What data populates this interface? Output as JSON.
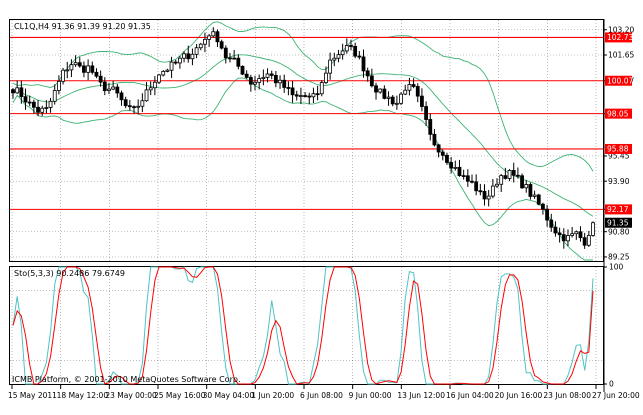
{
  "window": {
    "symbol_header": "CL1Q,H4  91.36 91.39 91.20 91.35",
    "oscillator_header": "Sto(5,3,3) 90.2486 79.6749",
    "footer": "ICMB Platform, © 2001-2010 MetaQuotes Software Corp."
  },
  "colors": {
    "background": "#ffffff",
    "candle": "#000000",
    "bollinger": "#3cb371",
    "level_line": "#ff0000",
    "level_tag": "#ff0000",
    "current_tag": "#000000",
    "stoch_main": "#4fc3c3",
    "stoch_signal": "#ff0000",
    "grid": "#000000"
  },
  "chart_data": {
    "type": "candlestick",
    "title": "CL1Q,H4",
    "ylim": [
      89.0,
      103.8
    ],
    "y_ticks": [
      103.2,
      101.65,
      100.07,
      98.05,
      95.45,
      93.9,
      92.17,
      90.8,
      89.25
    ],
    "x_ticks": [
      "15 May 2011",
      "18 May 12:00",
      "23 May 00:00",
      "25 May 16:00",
      "30 May 04:00",
      "1 Jun 20:00",
      "6 Jun 08:00",
      "9 Jun 00:00",
      "13 Jun 12:00",
      "16 Jun 04:00",
      "20 Jun 16:00",
      "23 Jun 08:00",
      "27 Jun 20:00"
    ],
    "horizontal_levels": [
      {
        "value": 102.73,
        "label": "102.73"
      },
      {
        "value": 100.07,
        "label": "100.07"
      },
      {
        "value": 98.05,
        "label": "98.05"
      },
      {
        "value": 95.88,
        "label": "95.88"
      },
      {
        "value": 92.17,
        "label": "92.17"
      }
    ],
    "current_price": {
      "value": 91.35,
      "label": "91.35"
    },
    "price_path": [
      99.6,
      99.2,
      98.6,
      98.2,
      98.3,
      99.5,
      100.7,
      101.2,
      100.8,
      100.9,
      99.9,
      99.6,
      99.4,
      98.6,
      98.1,
      98.8,
      99.6,
      100.5,
      100.8,
      101.1,
      101.5,
      101.8,
      102.3,
      103.0,
      102.7,
      101.5,
      101.2,
      100.6,
      99.9,
      100.3,
      100.5,
      100.0,
      99.6,
      99.0,
      99.2,
      98.9,
      99.5,
      101.2,
      101.7,
      102.1,
      101.9,
      101.0,
      100.0,
      99.3,
      99.0,
      98.7,
      99.7,
      99.5,
      98.2,
      96.5,
      95.9,
      95.2,
      94.6,
      94.0,
      93.7,
      92.9,
      93.1,
      94.2,
      94.4,
      94.1,
      93.6,
      92.9,
      92.2,
      91.3,
      90.6,
      90.4,
      90.7,
      90.2,
      91.35
    ],
    "stochastic": {
      "name": "Sto(5,3,3)",
      "ylim": [
        0,
        100
      ],
      "y_ticks": [
        100,
        0
      ],
      "main_value": 90.2486,
      "signal_value": 79.6749
    }
  }
}
